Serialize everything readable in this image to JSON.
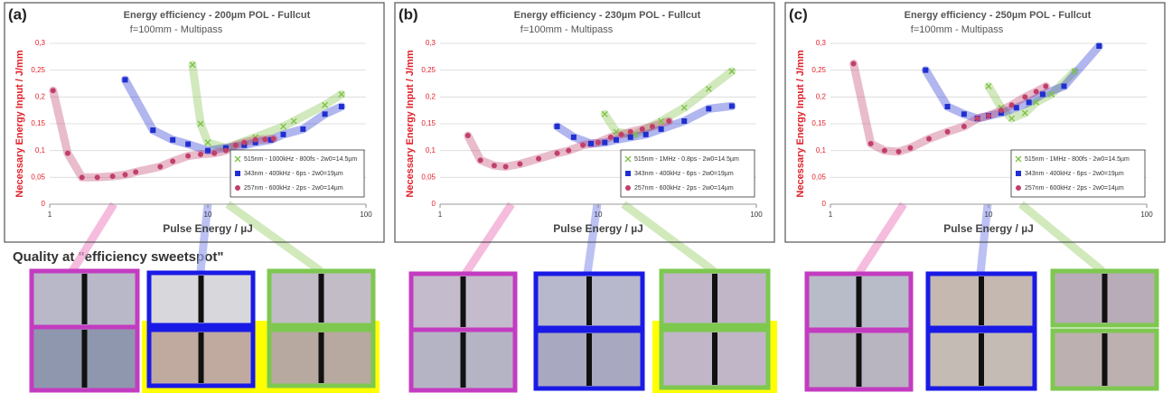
{
  "caption": "Quality at \"efficiency sweetspot\"",
  "chart_data": [
    {
      "type": "scatter",
      "label": "(a)",
      "title": "Energy efficiency - 200µm POL - Fullcut",
      "subtitle": "f=100mm -  Multipass",
      "x_label": "Pulse Energy / µJ",
      "y_label": "Necessary Energy Input / J/mm",
      "xscale": "log",
      "xlim": [
        1,
        100
      ],
      "xticks": [
        1,
        10,
        100
      ],
      "ylim": [
        0,
        0.3
      ],
      "yticks": [
        0,
        {
          "value": 0.05,
          "label": "0,05"
        },
        {
          "value": 0.1,
          "label": "0,1"
        },
        {
          "value": 0.15,
          "label": "0,15"
        },
        {
          "value": 0.2,
          "label": "0,2"
        },
        {
          "value": 0.25,
          "label": "0,25"
        },
        {
          "value": 0.3,
          "label": "0,3"
        }
      ],
      "grid": true,
      "legend": "right",
      "series": [
        {
          "name": "515nm - 1000kHz - 800fs - 2w0=14.5µm",
          "color": "#7cc142",
          "marker": "x",
          "x": [
            8,
            9,
            10,
            13,
            20,
            30,
            35,
            55,
            70
          ],
          "values": [
            0.26,
            0.15,
            0.115,
            0.105,
            0.125,
            0.145,
            0.155,
            0.185,
            0.205
          ]
        },
        {
          "name": "343nm - 400kHz - 6ps - 2w0=19µm",
          "color": "#1f2fd0",
          "marker": "square",
          "x": [
            3,
            4.5,
            6,
            7.5,
            10,
            13,
            17,
            20,
            25,
            30,
            40,
            55,
            70
          ],
          "values": [
            0.232,
            0.138,
            0.12,
            0.112,
            0.1,
            0.105,
            0.11,
            0.115,
            0.12,
            0.13,
            0.14,
            0.168,
            0.182
          ]
        },
        {
          "name": "257nm - 600kHz - 2ps - 2w0=14µm",
          "color": "#c0406a",
          "marker": "circle",
          "x": [
            1.05,
            1.3,
            1.6,
            2,
            2.5,
            3,
            3.5,
            5,
            6,
            7.5,
            9,
            11,
            13,
            15,
            17,
            20,
            23,
            26
          ],
          "values": [
            0.212,
            0.095,
            0.05,
            0.05,
            0.052,
            0.055,
            0.06,
            0.07,
            0.08,
            0.09,
            0.093,
            0.095,
            0.1,
            0.11,
            0.115,
            0.12,
            0.121,
            0.122
          ]
        }
      ]
    },
    {
      "type": "scatter",
      "label": "(b)",
      "title": "Energy efficiency - 230µm POL - Fullcut",
      "subtitle": "f=100mm -  Multipass",
      "x_label": "Pulse Energy / µJ",
      "y_label": "Necessary Energy Input / J/mm",
      "xscale": "log",
      "xlim": [
        1,
        100
      ],
      "xticks": [
        1,
        10,
        100
      ],
      "ylim": [
        0,
        0.3
      ],
      "yticks": [
        0,
        {
          "value": 0.05,
          "label": "0,05"
        },
        {
          "value": 0.1,
          "label": "0,1"
        },
        {
          "value": 0.15,
          "label": "0,15"
        },
        {
          "value": 0.2,
          "label": "0,2"
        },
        {
          "value": 0.25,
          "label": "0,25"
        },
        {
          "value": 0.3,
          "label": "0,3"
        }
      ],
      "grid": true,
      "legend": "right",
      "series": [
        {
          "name": "515nm - 1MHz - 0.8ps - 2w0=14.5µm",
          "color": "#7cc142",
          "marker": "x",
          "x": [
            11,
            13,
            17,
            25,
            35,
            50,
            70
          ],
          "values": [
            0.168,
            0.135,
            0.13,
            0.155,
            0.18,
            0.215,
            0.248
          ]
        },
        {
          "name": "343nm - 400kHz - 6ps - 2w0=19µm",
          "color": "#1f2fd0",
          "marker": "square",
          "x": [
            5.5,
            7,
            9,
            11,
            13,
            16,
            20,
            25,
            35,
            50,
            70
          ],
          "values": [
            0.145,
            0.125,
            0.113,
            0.115,
            0.12,
            0.125,
            0.13,
            0.14,
            0.155,
            0.178,
            0.183
          ]
        },
        {
          "name": "257nm - 600kHz - 2ps - 2w0=14µm",
          "color": "#c0406a",
          "marker": "circle",
          "x": [
            1.5,
            1.8,
            2.2,
            2.6,
            3.2,
            4.2,
            5.5,
            6.5,
            8,
            10,
            12,
            14,
            16,
            19,
            22,
            28
          ],
          "values": [
            0.128,
            0.082,
            0.072,
            0.07,
            0.075,
            0.085,
            0.095,
            0.1,
            0.11,
            0.115,
            0.125,
            0.13,
            0.135,
            0.14,
            0.145,
            0.155
          ]
        }
      ]
    },
    {
      "type": "scatter",
      "label": "(c)",
      "title": "Energy efficiency - 250µm POL - Fullcut",
      "subtitle": "f=100mm -  Multipass",
      "x_label": "Pulse Energy / µJ",
      "y_label": "Necessary Energy Input / J/mm",
      "xscale": "log",
      "xlim": [
        1,
        100
      ],
      "xticks": [
        1,
        10,
        100
      ],
      "ylim": [
        0,
        0.3
      ],
      "yticks": [
        0,
        {
          "value": 0.05,
          "label": "0,05"
        },
        {
          "value": 0.1,
          "label": "0,1"
        },
        {
          "value": 0.15,
          "label": "0,15"
        },
        {
          "value": 0.2,
          "label": "0,2"
        },
        {
          "value": 0.25,
          "label": "0,25"
        },
        {
          "value": 0.3,
          "label": "0,3"
        }
      ],
      "grid": true,
      "legend": "right",
      "series": [
        {
          "name": "515nm - 1MHz - 800fs - 2w0=14.5µm",
          "color": "#7cc142",
          "marker": "x",
          "x": [
            10,
            12,
            14,
            17,
            20,
            25,
            35
          ],
          "values": [
            0.22,
            0.18,
            0.16,
            0.17,
            0.19,
            0.205,
            0.248
          ]
        },
        {
          "name": "343nm - 400kHz - 6ps - 2w0=19µm",
          "color": "#1f2fd0",
          "marker": "square",
          "x": [
            4,
            5.5,
            7,
            8.5,
            10,
            12,
            15,
            18,
            22,
            30,
            50
          ],
          "values": [
            0.25,
            0.182,
            0.168,
            0.16,
            0.165,
            0.17,
            0.18,
            0.19,
            0.205,
            0.22,
            0.295
          ]
        },
        {
          "name": "257nm - 600kHz - 2ps - 2w0=14µm",
          "color": "#c0406a",
          "marker": "circle",
          "x": [
            1.4,
            1.8,
            2.2,
            2.7,
            3.2,
            4.2,
            5.5,
            7,
            8.5,
            10,
            12,
            14,
            17,
            20,
            23
          ],
          "values": [
            0.262,
            0.113,
            0.1,
            0.098,
            0.105,
            0.122,
            0.135,
            0.145,
            0.16,
            0.165,
            0.175,
            0.185,
            0.2,
            0.21,
            0.22
          ]
        }
      ]
    }
  ]
}
